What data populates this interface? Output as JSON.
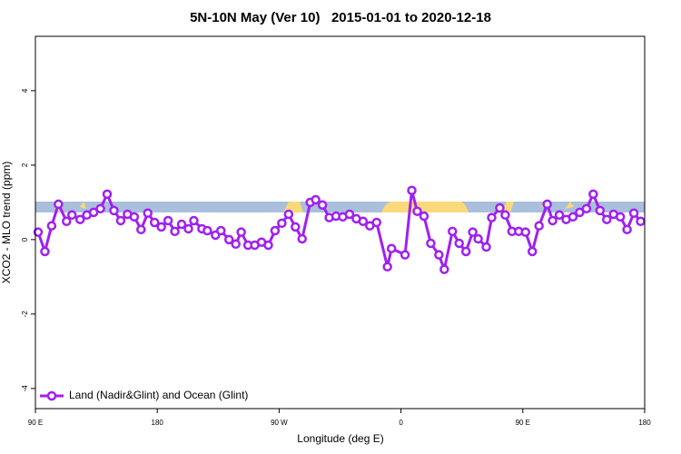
{
  "chart_data": {
    "type": "line",
    "title": "5N-10N May (Ver 10)   2015-01-01 to 2020-12-18",
    "x_label": "Longitude (deg E)",
    "y_label": "XCO2 - MLO trend (ppm)",
    "xlim": [
      90,
      540
    ],
    "xticks": [
      {
        "value": 90,
        "label": "90 E"
      },
      180,
      {
        "value": 270,
        "label": "90 W"
      },
      {
        "value": 360,
        "label": "0"
      },
      {
        "value": 450,
        "label": "90 E"
      },
      {
        "value": 540,
        "label": "180"
      }
    ],
    "ylim": [
      -4.54,
      5.46
    ],
    "yticks": [
      -4,
      -2,
      0,
      2,
      4
    ],
    "legend": "bottomleft",
    "series": [
      {
        "name": "Land (Nadir&Glint) and Ocean (Glint)",
        "color": "#a020f0",
        "x": [
          92,
          97,
          102,
          107,
          113,
          117,
          123,
          128,
          133,
          138,
          143,
          148,
          153,
          158,
          163,
          168,
          173,
          178,
          183,
          188,
          193,
          198,
          203,
          207,
          213,
          217,
          223,
          227,
          233,
          238,
          242,
          247,
          252,
          257,
          262,
          267,
          272,
          277,
          282,
          287,
          293,
          297,
          302,
          307,
          312,
          317,
          322,
          327,
          332,
          337,
          342,
          350,
          353,
          363,
          368,
          372,
          377,
          382,
          388,
          392,
          398,
          403,
          408,
          413,
          417,
          423,
          427,
          433,
          437,
          442,
          447,
          452,
          457,
          462,
          468,
          472,
          477,
          482,
          487,
          492,
          497,
          502,
          507,
          512,
          517,
          522,
          527,
          532,
          537
        ],
        "values": [
          0.2,
          -0.32,
          0.37,
          0.95,
          0.49,
          0.66,
          0.54,
          0.66,
          0.73,
          0.83,
          1.22,
          0.78,
          0.51,
          0.68,
          0.61,
          0.27,
          0.71,
          0.46,
          0.34,
          0.51,
          0.22,
          0.41,
          0.29,
          0.51,
          0.29,
          0.24,
          0.12,
          0.24,
          0.0,
          -0.12,
          0.2,
          -0.15,
          -0.15,
          -0.07,
          -0.15,
          0.24,
          0.44,
          0.68,
          0.34,
          0.02,
          1.0,
          1.07,
          0.93,
          0.59,
          0.63,
          0.61,
          0.68,
          0.56,
          0.49,
          0.37,
          0.46,
          -0.73,
          -0.24,
          -0.41,
          1.32,
          0.76,
          0.63,
          -0.1,
          -0.41,
          -0.8,
          0.22,
          -0.1,
          -0.32,
          0.2,
          0.02,
          -0.2,
          0.59,
          0.85,
          0.66,
          0.22,
          0.22,
          0.2,
          -0.32,
          0.37,
          0.95,
          0.51,
          0.66,
          0.54,
          0.61,
          0.73,
          0.83,
          1.22,
          0.78,
          0.54,
          0.68,
          0.61,
          0.27,
          0.71,
          0.49
        ]
      }
    ]
  }
}
